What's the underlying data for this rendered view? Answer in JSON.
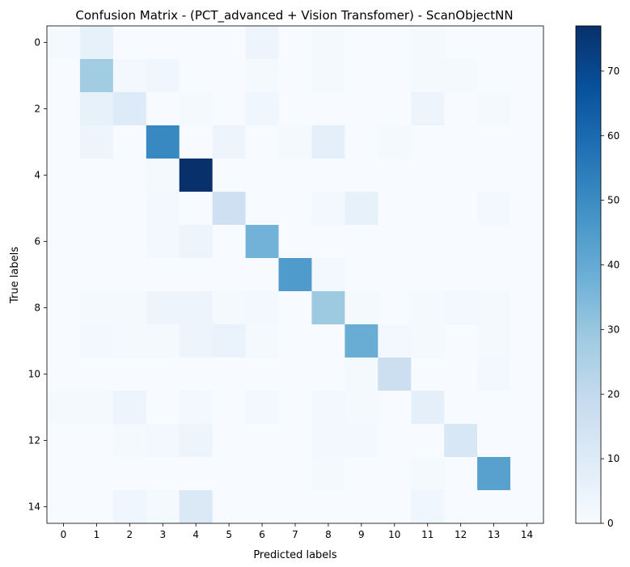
{
  "chart_data": {
    "type": "heatmap",
    "title": "Confusion Matrix - (PCT_advanced + Vision Transfomer) - ScanObjectNN",
    "xlabel": "Predicted labels",
    "ylabel": "True labels",
    "x_categories": [
      "0",
      "1",
      "2",
      "3",
      "4",
      "5",
      "6",
      "7",
      "8",
      "9",
      "10",
      "11",
      "12",
      "13",
      "14"
    ],
    "y_categories": [
      "0",
      "1",
      "2",
      "3",
      "4",
      "5",
      "6",
      "7",
      "8",
      "9",
      "10",
      "11",
      "12",
      "13",
      "14"
    ],
    "y_tick_labels": [
      "0",
      "2",
      "4",
      "6",
      "8",
      "10",
      "12",
      "14"
    ],
    "colorbar": {
      "vmin": 0,
      "vmax": 77,
      "ticks": [
        0,
        10,
        20,
        30,
        40,
        50,
        60,
        70
      ],
      "tick_labels": [
        "0",
        "10",
        "20",
        "30",
        "40",
        "50",
        "60",
        "70"
      ]
    },
    "colormap": {
      "low": "#f7fbff",
      "high": "#08306b",
      "name": "Blues"
    },
    "matrix": [
      [
        1,
        6,
        0,
        0,
        0,
        0,
        4,
        0,
        1,
        0,
        0,
        1,
        0,
        0,
        0
      ],
      [
        0,
        28,
        2,
        3,
        0,
        0,
        1,
        0,
        1,
        0,
        0,
        1,
        1,
        0,
        0
      ],
      [
        0,
        6,
        10,
        0,
        1,
        0,
        3,
        0,
        0,
        0,
        0,
        4,
        0,
        1,
        0
      ],
      [
        0,
        4,
        0,
        51,
        0,
        4,
        0,
        1,
        7,
        0,
        1,
        0,
        0,
        0,
        0
      ],
      [
        0,
        0,
        0,
        1,
        77,
        0,
        0,
        0,
        0,
        0,
        0,
        0,
        0,
        0,
        0
      ],
      [
        0,
        0,
        0,
        2,
        0,
        16,
        0,
        0,
        2,
        6,
        0,
        0,
        0,
        2,
        0
      ],
      [
        0,
        0,
        0,
        2,
        4,
        0,
        37,
        0,
        0,
        0,
        0,
        0,
        0,
        0,
        0
      ],
      [
        0,
        0,
        0,
        0,
        0,
        0,
        0,
        45,
        2,
        0,
        0,
        0,
        0,
        0,
        0
      ],
      [
        0,
        1,
        1,
        4,
        4,
        1,
        2,
        0,
        29,
        1,
        0,
        1,
        2,
        1,
        0
      ],
      [
        0,
        2,
        1,
        1,
        4,
        5,
        1,
        0,
        0,
        39,
        2,
        1,
        0,
        1,
        0
      ],
      [
        0,
        0,
        0,
        0,
        0,
        0,
        0,
        0,
        0,
        1,
        17,
        0,
        0,
        2,
        0
      ],
      [
        1,
        1,
        4,
        0,
        2,
        0,
        2,
        0,
        2,
        1,
        0,
        7,
        0,
        0,
        0
      ],
      [
        0,
        0,
        1,
        2,
        4,
        0,
        0,
        0,
        2,
        2,
        0,
        0,
        12,
        0,
        0
      ],
      [
        0,
        0,
        0,
        0,
        0,
        0,
        0,
        0,
        1,
        0,
        0,
        1,
        0,
        43,
        0
      ],
      [
        0,
        0,
        3,
        1,
        11,
        0,
        0,
        0,
        0,
        0,
        0,
        3,
        0,
        0,
        0
      ]
    ]
  }
}
